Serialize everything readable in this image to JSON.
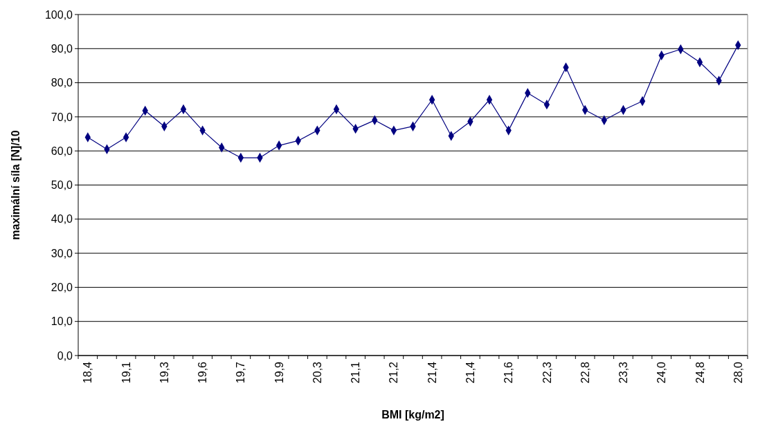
{
  "chart_data": {
    "type": "line",
    "xlabel": "BMI [kg/m2]",
    "ylabel": "maximální síla [N]/10",
    "categories": [
      "18,4",
      null,
      "19,1",
      null,
      "19,3",
      null,
      "19,6",
      null,
      "19,7",
      null,
      "19,9",
      null,
      "20,3",
      null,
      "21,1",
      null,
      "21,2",
      null,
      "21,4",
      null,
      "21,4",
      null,
      "21,6",
      null,
      "22,3",
      null,
      "22,8",
      null,
      "23,3",
      null,
      "24,0",
      null,
      "24,8",
      null,
      "28,0"
    ],
    "series": [
      {
        "color": "#000080",
        "values": [
          64,
          60.5,
          64,
          71.8,
          67.2,
          72.2,
          66,
          61,
          58,
          58,
          61.6,
          63,
          66,
          72.2,
          66.5,
          69,
          66,
          67.2,
          75,
          64.4,
          68.6,
          75,
          66,
          77,
          73.6,
          84.5,
          72,
          69,
          72,
          74.6,
          88,
          89.8,
          86,
          80.6,
          91
        ]
      }
    ],
    "ylim": [
      0,
      100
    ],
    "yticks": [
      {
        "value": 0,
        "label": "0,0"
      },
      {
        "value": 10,
        "label": "10,0"
      },
      {
        "value": 20,
        "label": "20,0"
      },
      {
        "value": 30,
        "label": "30,0"
      },
      {
        "value": 40,
        "label": "40,0"
      },
      {
        "value": 50,
        "label": "50,0"
      },
      {
        "value": 60,
        "label": "60,0"
      },
      {
        "value": 70,
        "label": "70,0"
      },
      {
        "value": 80,
        "label": "80,0"
      },
      {
        "value": 90,
        "label": "90,0"
      },
      {
        "value": 100,
        "label": "100,0"
      }
    ],
    "grid": "y",
    "marker": "diamond",
    "line_style": "solid"
  }
}
